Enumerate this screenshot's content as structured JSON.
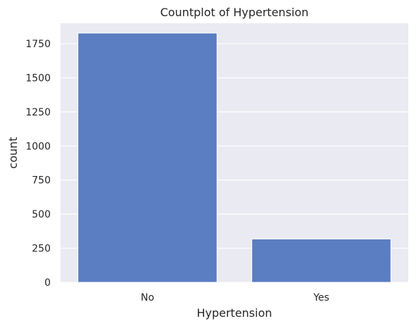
{
  "chart_data": {
    "type": "bar",
    "title": "Countplot of Hypertension",
    "xlabel": "Hypertension",
    "ylabel": "count",
    "categories": [
      "No",
      "Yes"
    ],
    "values": [
      1828,
      318
    ],
    "ylim": [
      0,
      1900
    ],
    "yticks": [
      0,
      250,
      500,
      750,
      1000,
      1250,
      1500,
      1750
    ],
    "grid": true,
    "legend": "none",
    "bar_color": "#5b7dc1",
    "plot_background": "#eaeaf2",
    "grid_color": "#ffffff"
  }
}
